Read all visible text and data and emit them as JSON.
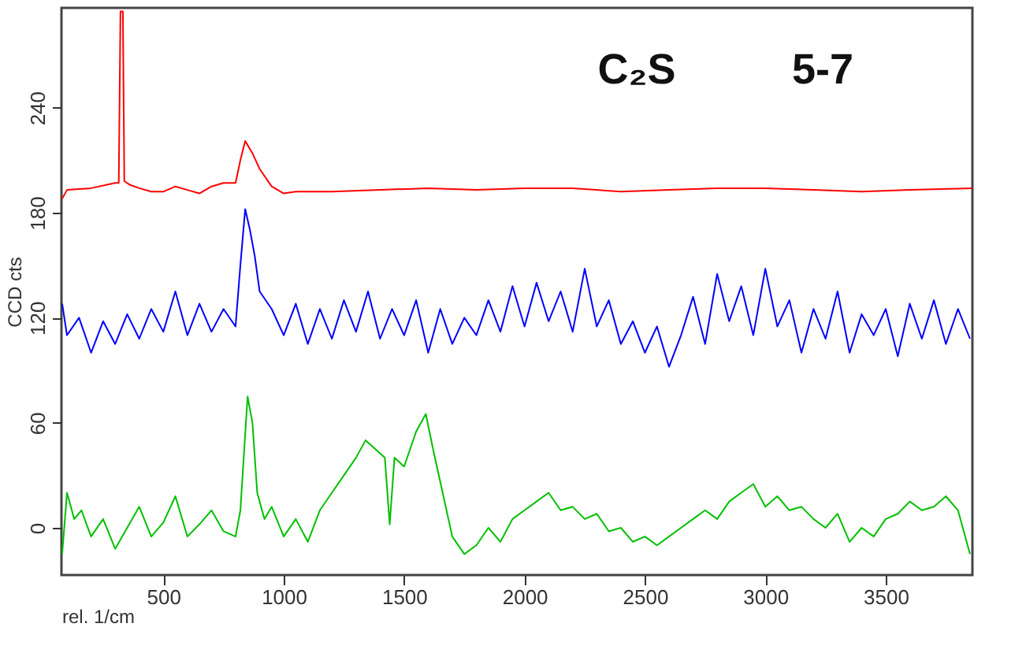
{
  "chart_data": {
    "type": "line",
    "xlabel": "rel. 1/cm",
    "ylabel": "CCD cts",
    "annotations": [
      "C₂S",
      "5-7"
    ],
    "xlim": [
      77,
      3860
    ],
    "xticks": [
      500,
      1000,
      1500,
      2000,
      2500,
      3000,
      3500
    ],
    "ylim": [
      -27,
      297
    ],
    "yticks": [
      0,
      60,
      120,
      180,
      240
    ],
    "grid": false,
    "marker": "none",
    "line_style": "solid",
    "series": [
      {
        "color": "#ff0000",
        "x": [
          80,
          100,
          200,
          300,
          315,
          322,
          332,
          338,
          360,
          400,
          450,
          500,
          550,
          600,
          650,
          700,
          750,
          800,
          820,
          840,
          870,
          900,
          950,
          1000,
          1050,
          1200,
          1400,
          1600,
          1800,
          2000,
          2200,
          2400,
          2600,
          2800,
          3000,
          3200,
          3400,
          3600,
          3860
        ],
        "values": [
          188,
          193,
          194,
          197,
          197,
          295,
          295,
          198,
          196,
          194,
          192,
          192,
          195,
          193,
          191,
          195,
          197,
          197,
          210,
          221,
          214,
          205,
          195,
          191,
          192,
          192,
          193,
          194,
          193,
          194,
          194,
          192,
          193,
          194,
          194,
          193,
          192,
          193,
          194
        ]
      },
      {
        "color": "#0000ff",
        "x": [
          80,
          100,
          150,
          200,
          250,
          300,
          350,
          400,
          450,
          500,
          550,
          600,
          650,
          700,
          750,
          800,
          820,
          840,
          860,
          880,
          900,
          950,
          1000,
          1050,
          1100,
          1150,
          1200,
          1250,
          1300,
          1350,
          1400,
          1450,
          1500,
          1550,
          1600,
          1650,
          1700,
          1750,
          1800,
          1850,
          1900,
          1950,
          2000,
          2050,
          2100,
          2150,
          2200,
          2250,
          2300,
          2350,
          2400,
          2450,
          2500,
          2550,
          2600,
          2650,
          2700,
          2750,
          2800,
          2850,
          2900,
          2950,
          3000,
          3050,
          3100,
          3150,
          3200,
          3250,
          3300,
          3350,
          3400,
          3450,
          3500,
          3550,
          3600,
          3650,
          3700,
          3750,
          3800,
          3850
        ],
        "values": [
          128,
          110,
          120,
          100,
          118,
          105,
          122,
          108,
          125,
          112,
          135,
          110,
          128,
          112,
          125,
          115,
          150,
          182,
          170,
          155,
          135,
          125,
          110,
          128,
          105,
          125,
          108,
          130,
          112,
          135,
          108,
          125,
          110,
          130,
          100,
          125,
          105,
          120,
          110,
          130,
          112,
          138,
          115,
          140,
          118,
          135,
          112,
          148,
          115,
          130,
          105,
          118,
          100,
          115,
          92,
          110,
          132,
          105,
          145,
          118,
          138,
          110,
          148,
          115,
          130,
          100,
          125,
          108,
          135,
          100,
          122,
          110,
          125,
          98,
          128,
          108,
          130,
          105,
          125,
          108
        ]
      },
      {
        "color": "#00c000",
        "x": [
          80,
          100,
          130,
          160,
          200,
          250,
          300,
          350,
          400,
          450,
          500,
          550,
          600,
          650,
          700,
          750,
          800,
          820,
          850,
          870,
          890,
          920,
          950,
          1000,
          1050,
          1100,
          1150,
          1200,
          1250,
          1300,
          1340,
          1380,
          1420,
          1440,
          1460,
          1500,
          1550,
          1590,
          1620,
          1660,
          1700,
          1750,
          1800,
          1850,
          1900,
          1950,
          2000,
          2050,
          2100,
          2150,
          2200,
          2250,
          2300,
          2350,
          2400,
          2450,
          2500,
          2550,
          2600,
          2650,
          2700,
          2750,
          2800,
          2850,
          2900,
          2950,
          3000,
          3050,
          3100,
          3150,
          3200,
          3250,
          3300,
          3350,
          3400,
          3450,
          3500,
          3550,
          3600,
          3650,
          3700,
          3750,
          3800,
          3850
        ],
        "values": [
          -15,
          20,
          5,
          10,
          -5,
          5,
          -12,
          0,
          12,
          -5,
          3,
          18,
          -5,
          2,
          10,
          -2,
          -5,
          10,
          75,
          60,
          20,
          5,
          12,
          -5,
          5,
          -8,
          10,
          20,
          30,
          40,
          50,
          45,
          40,
          2,
          40,
          35,
          55,
          65,
          45,
          20,
          -5,
          -15,
          -10,
          0,
          -8,
          5,
          10,
          15,
          20,
          10,
          12,
          5,
          8,
          -2,
          0,
          -8,
          -5,
          -10,
          -5,
          0,
          5,
          10,
          5,
          15,
          20,
          25,
          12,
          18,
          10,
          12,
          5,
          0,
          8,
          -8,
          0,
          -5,
          5,
          8,
          15,
          10,
          12,
          18,
          10,
          -15
        ]
      }
    ]
  }
}
